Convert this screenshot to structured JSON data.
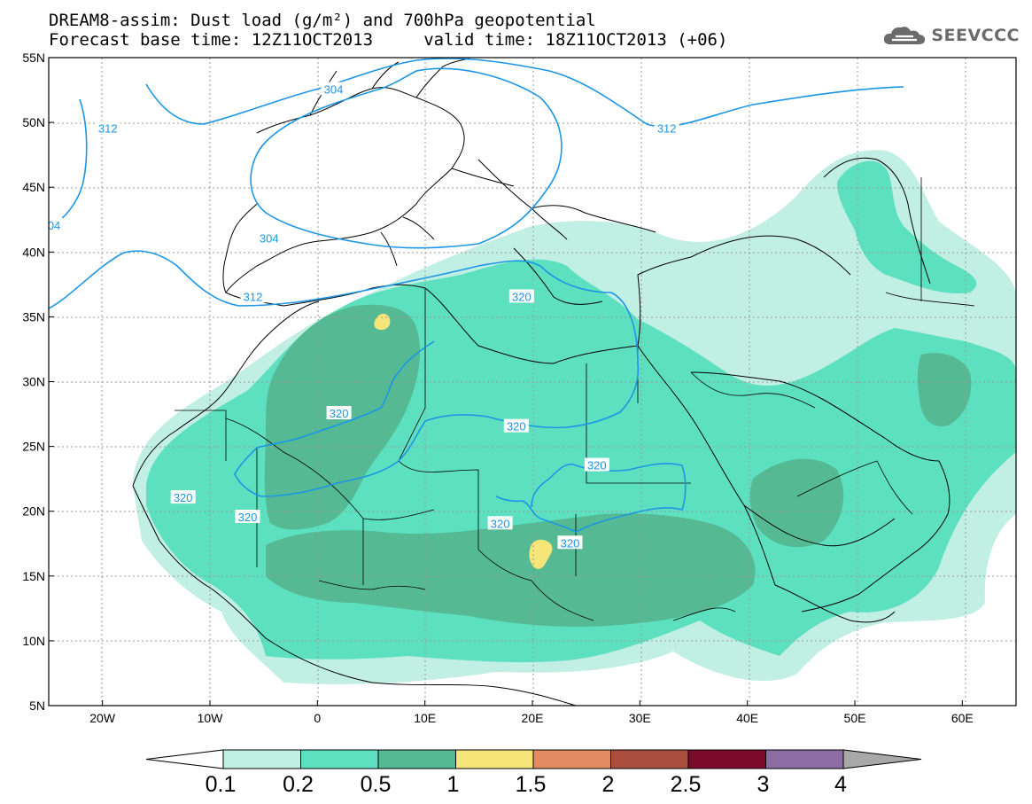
{
  "header": {
    "title_line1": "DREAM8-assim: Dust load (g/m²) and 700hPa geopotential",
    "title_line2": "Forecast base time: 12Z11OCT2013     valid time: 18Z11OCT2013 (+06)",
    "logo_text": "SEEVCCC"
  },
  "map": {
    "lon_range": [
      -25,
      65
    ],
    "lat_range": [
      5,
      55
    ],
    "lon_ticks": [
      {
        "v": -20,
        "label": "20W"
      },
      {
        "v": -10,
        "label": "10W"
      },
      {
        "v": 0,
        "label": "0"
      },
      {
        "v": 10,
        "label": "10E"
      },
      {
        "v": 20,
        "label": "20E"
      },
      {
        "v": 30,
        "label": "30E"
      },
      {
        "v": 40,
        "label": "40E"
      },
      {
        "v": 50,
        "label": "50E"
      },
      {
        "v": 60,
        "label": "60E"
      }
    ],
    "lat_ticks": [
      {
        "v": 5,
        "label": "5N"
      },
      {
        "v": 10,
        "label": "10N"
      },
      {
        "v": 15,
        "label": "15N"
      },
      {
        "v": 20,
        "label": "20N"
      },
      {
        "v": 25,
        "label": "25N"
      },
      {
        "v": 30,
        "label": "30N"
      },
      {
        "v": 35,
        "label": "35N"
      },
      {
        "v": 40,
        "label": "40N"
      },
      {
        "v": 45,
        "label": "45N"
      },
      {
        "v": 50,
        "label": "50N"
      },
      {
        "v": 55,
        "label": "55N"
      }
    ],
    "contour_labels": [
      {
        "text": "304",
        "lon": 1.5,
        "lat": 52.5
      },
      {
        "text": "312",
        "lon": -19.5,
        "lat": 49.5
      },
      {
        "text": "312",
        "lon": 32.5,
        "lat": 49.5
      },
      {
        "text": "304",
        "lon": -4.5,
        "lat": 41.0
      },
      {
        "text": "04",
        "lon": -24.5,
        "lat": 42.0
      },
      {
        "text": "312",
        "lon": -6.0,
        "lat": 36.5
      },
      {
        "text": "320",
        "lon": 2.0,
        "lat": 27.5
      },
      {
        "text": "320",
        "lon": 18.5,
        "lat": 26.5
      },
      {
        "text": "320",
        "lon": 26.0,
        "lat": 23.5
      },
      {
        "text": "320",
        "lon": -12.5,
        "lat": 21.0
      },
      {
        "text": "320",
        "lon": -6.5,
        "lat": 19.5
      },
      {
        "text": "320",
        "lon": 17.0,
        "lat": 19.0
      },
      {
        "text": "320",
        "lon": 23.5,
        "lat": 17.5
      },
      {
        "text": "320",
        "lon": 19.0,
        "lat": 36.5
      }
    ]
  },
  "colorbar": {
    "colors": [
      "#c1efe3",
      "#5de0bf",
      "#55b993",
      "#f6e67a",
      "#e48b64",
      "#ab4e3f",
      "#7c0a2a",
      "#8c6ca2"
    ],
    "over_color": "#a8a8a8",
    "under_color": "#ffffff",
    "labels": [
      "0.1",
      "0.2",
      "0.5",
      "1",
      "1.5",
      "2",
      "2.5",
      "3",
      "4"
    ]
  }
}
